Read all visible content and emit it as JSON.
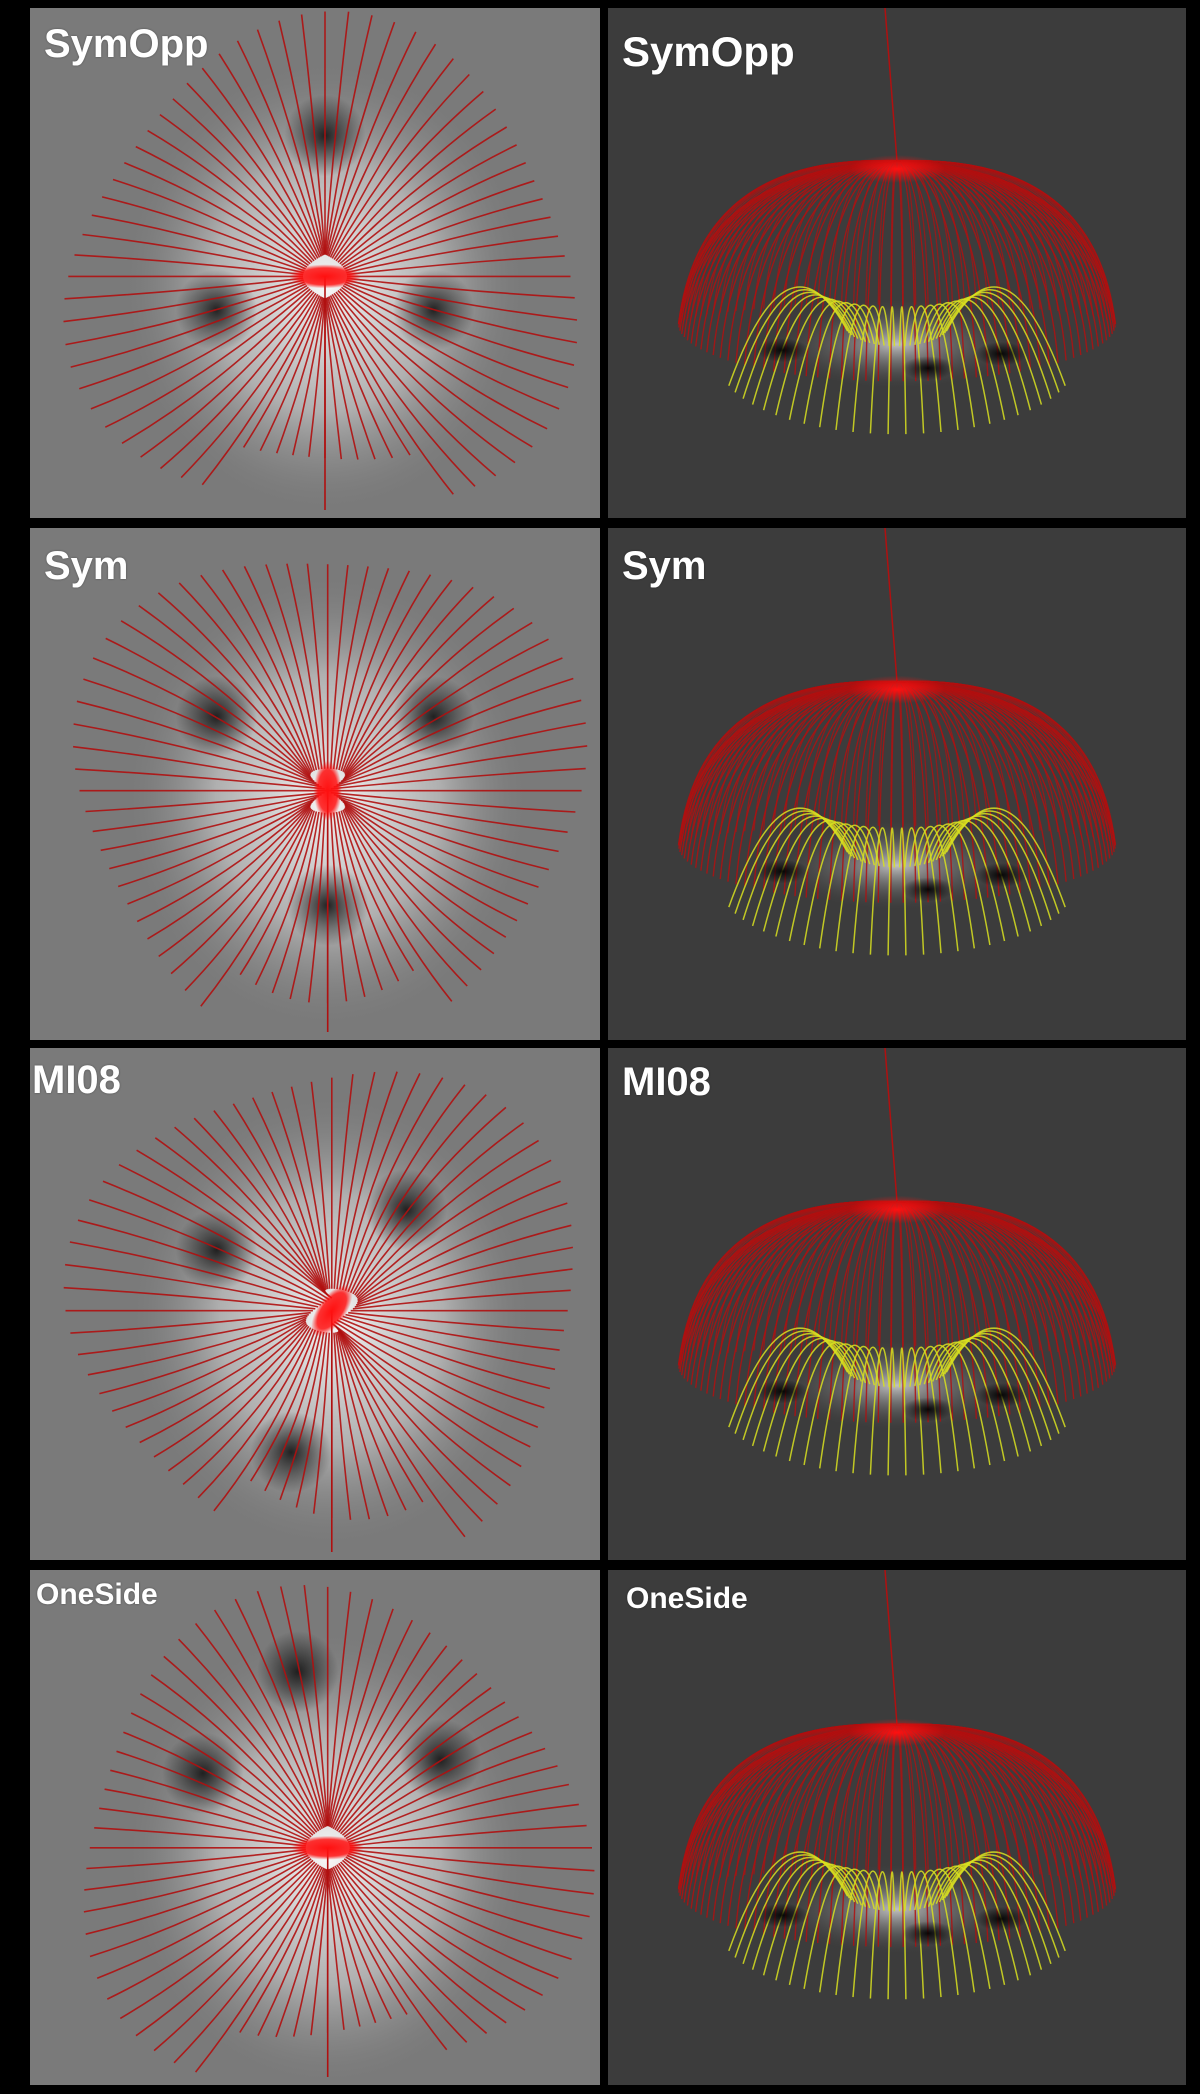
{
  "panels": [
    {
      "row": 0,
      "view": "top",
      "label": "SymOpp",
      "config": "symopp"
    },
    {
      "row": 0,
      "view": "side",
      "label": "SymOpp",
      "config": "symopp"
    },
    {
      "row": 1,
      "view": "top",
      "label": "Sym",
      "config": "sym"
    },
    {
      "row": 1,
      "view": "side",
      "label": "Sym",
      "config": "sym"
    },
    {
      "row": 2,
      "view": "top",
      "label": "MI08",
      "config": "mi08"
    },
    {
      "row": 2,
      "view": "side",
      "label": "MI08",
      "config": "mi08"
    },
    {
      "row": 3,
      "view": "top",
      "label": "OneSide",
      "config": "oneside"
    },
    {
      "row": 3,
      "view": "side",
      "label": "OneSide",
      "config": "oneside"
    }
  ],
  "colors": {
    "frame": "#000000",
    "top_background": "#7a7a7a",
    "side_background": "#3c3c3c",
    "open_field_line": "#b01010",
    "closed_field_line": "#d8e020",
    "hot_spot": "#ff1010",
    "sunspot": "#1a1a1a",
    "label": "#ffffff"
  }
}
